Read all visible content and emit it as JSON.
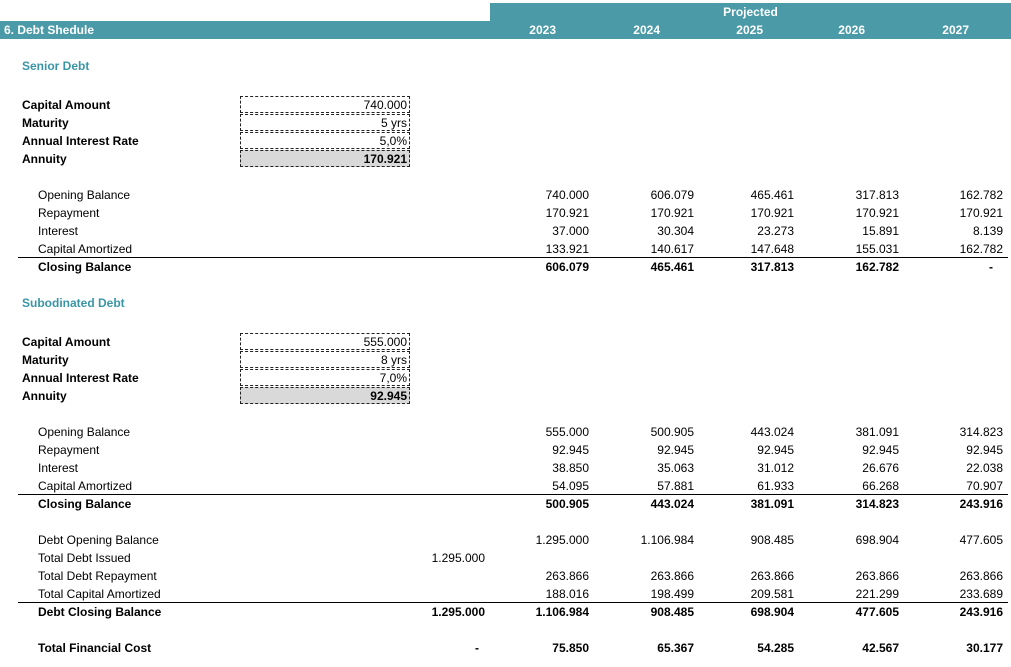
{
  "header": {
    "title": "6.  Debt Shedule",
    "projected": "Projected",
    "years": [
      "2023",
      "2024",
      "2025",
      "2026",
      "2027"
    ]
  },
  "senior": {
    "title": "Senior Debt",
    "inputs": [
      {
        "label": "Capital Amount",
        "value": "740.000"
      },
      {
        "label": "Maturity",
        "value": "5 yrs"
      },
      {
        "label": "Annual Interest Rate",
        "value": "5,0%"
      },
      {
        "label": "Annuity",
        "value": "170.921"
      }
    ],
    "rows": [
      {
        "label": "Opening Balance",
        "values": [
          "740.000",
          "606.079",
          "465.461",
          "317.813",
          "162.782"
        ]
      },
      {
        "label": "Repayment",
        "values": [
          "170.921",
          "170.921",
          "170.921",
          "170.921",
          "170.921"
        ]
      },
      {
        "label": "Interest",
        "values": [
          "37.000",
          "30.304",
          "23.273",
          "15.891",
          "8.139"
        ]
      },
      {
        "label": "Capital Amortized",
        "values": [
          "133.921",
          "140.617",
          "147.648",
          "155.031",
          "162.782"
        ]
      }
    ],
    "closing": {
      "label": "Closing Balance",
      "values": [
        "606.079",
        "465.461",
        "317.813",
        "162.782",
        "-"
      ]
    }
  },
  "subordinated": {
    "title": "Subodinated Debt",
    "inputs": [
      {
        "label": "Capital Amount",
        "value": "555.000"
      },
      {
        "label": "Maturity",
        "value": "8 yrs"
      },
      {
        "label": "Annual Interest Rate",
        "value": "7,0%"
      },
      {
        "label": "Annuity",
        "value": "92.945"
      }
    ],
    "rows": [
      {
        "label": "Opening Balance",
        "values": [
          "555.000",
          "500.905",
          "443.024",
          "381.091",
          "314.823"
        ]
      },
      {
        "label": "Repayment",
        "values": [
          "92.945",
          "92.945",
          "92.945",
          "92.945",
          "92.945"
        ]
      },
      {
        "label": "Interest",
        "values": [
          "38.850",
          "35.063",
          "31.012",
          "26.676",
          "22.038"
        ]
      },
      {
        "label": "Capital Amortized",
        "values": [
          "54.095",
          "57.881",
          "61.933",
          "66.268",
          "70.907"
        ]
      }
    ],
    "closing": {
      "label": "Closing Balance",
      "values": [
        "500.905",
        "443.024",
        "381.091",
        "314.823",
        "243.916"
      ]
    }
  },
  "totals": {
    "rows": [
      {
        "label": "Debt Opening Balance",
        "base": "",
        "values": [
          "1.295.000",
          "1.106.984",
          "908.485",
          "698.904",
          "477.605"
        ]
      },
      {
        "label": "Total Debt Issued",
        "base": "1.295.000",
        "values": [
          "",
          "",
          "",
          "",
          ""
        ]
      },
      {
        "label": "Total Debt Repayment",
        "base": "",
        "values": [
          "263.866",
          "263.866",
          "263.866",
          "263.866",
          "263.866"
        ]
      },
      {
        "label": "Total Capital Amortized",
        "base": "",
        "values": [
          "188.016",
          "198.499",
          "209.581",
          "221.299",
          "233.689"
        ]
      }
    ],
    "closing": {
      "label": "Debt Closing Balance",
      "base": "1.295.000",
      "values": [
        "1.106.984",
        "908.485",
        "698.904",
        "477.605",
        "243.916"
      ]
    },
    "financial_cost": {
      "label": "Total Financial Cost",
      "base": "-",
      "values": [
        "75.850",
        "65.367",
        "54.285",
        "42.567",
        "30.177"
      ]
    }
  },
  "colors": {
    "header_bar": "#4a9aa8",
    "section_title": "#3a96a6",
    "annuity_fill": "#d9d9d9"
  }
}
